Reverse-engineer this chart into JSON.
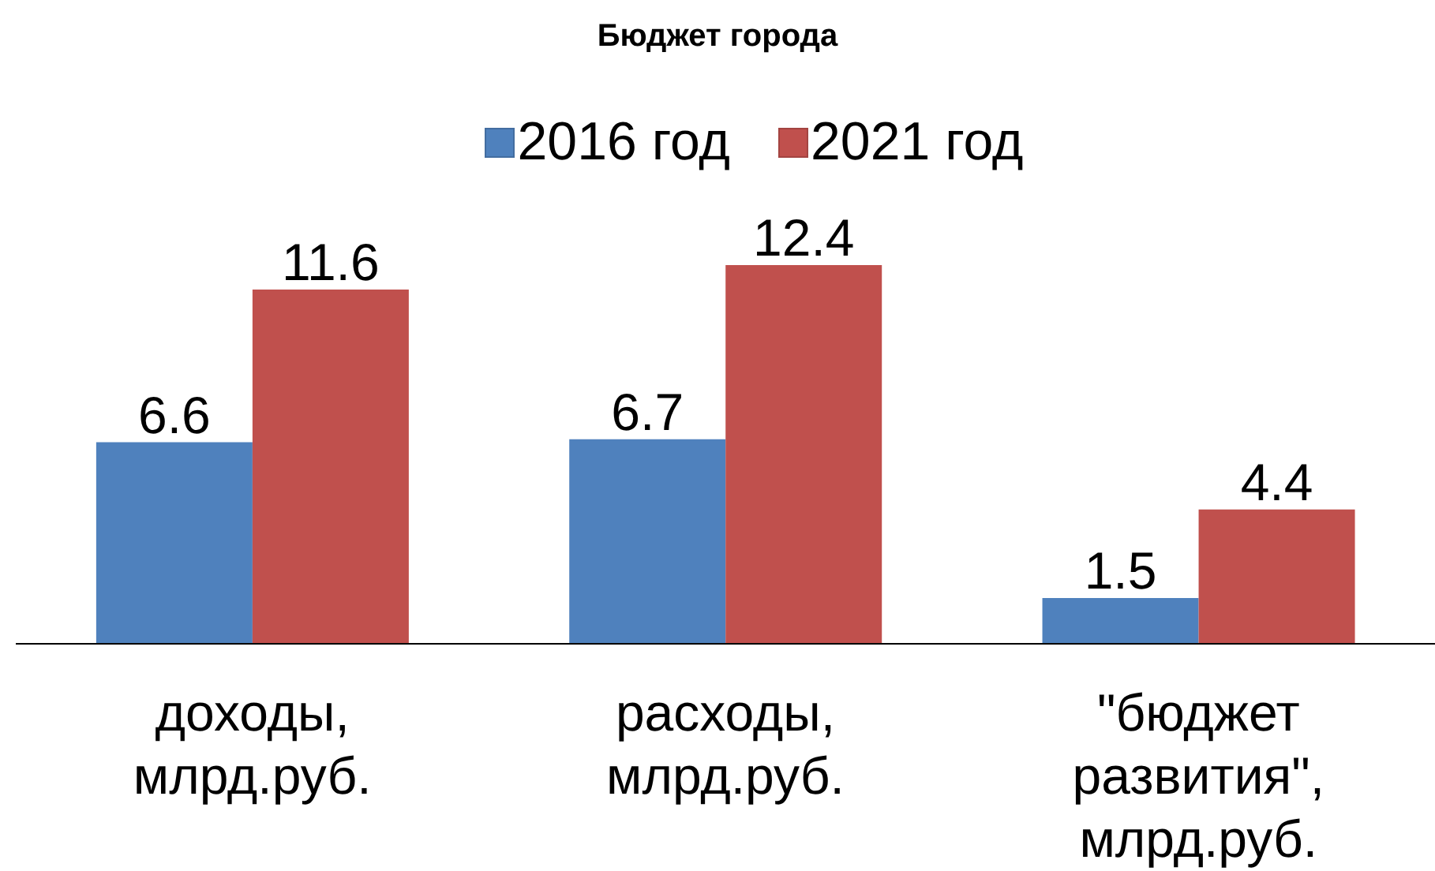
{
  "chart_data": {
    "type": "bar",
    "title": "Бюджет города",
    "categories": [
      "доходы, млрд.руб.",
      "расходы, млрд.руб.",
      "\"бюджет развития\", млрд.руб."
    ],
    "series": [
      {
        "name": "2016 год",
        "color": "#4f81bd",
        "values": [
          6.6,
          6.7,
          1.5
        ]
      },
      {
        "name": "2021 год",
        "color": "#c0504d",
        "values": [
          11.6,
          12.4,
          4.4
        ]
      }
    ],
    "data_labels": true,
    "legend": "top",
    "tick_labels": "x"
  }
}
